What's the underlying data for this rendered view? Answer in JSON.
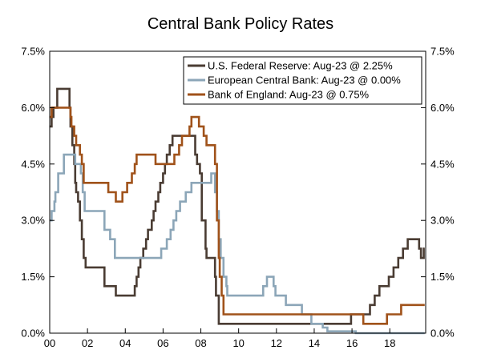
{
  "chart_data": {
    "type": "line",
    "title": "Central Bank Policy Rates",
    "xlabel": "",
    "ylabel": "",
    "xlim": [
      2000,
      2019.9
    ],
    "ylim": [
      0,
      7.5
    ],
    "x_ticks": [
      {
        "value": 2000,
        "label": "00"
      },
      {
        "value": 2002,
        "label": "02"
      },
      {
        "value": 2004,
        "label": "04"
      },
      {
        "value": 2006,
        "label": "06"
      },
      {
        "value": 2008,
        "label": "08"
      },
      {
        "value": 2010,
        "label": "10"
      },
      {
        "value": 2012,
        "label": "12"
      },
      {
        "value": 2014,
        "label": "14"
      },
      {
        "value": 2016,
        "label": "16"
      },
      {
        "value": 2018,
        "label": "18"
      }
    ],
    "y_ticks": [
      {
        "value": 0,
        "label": "0.0%"
      },
      {
        "value": 1.5,
        "label": "1.5%"
      },
      {
        "value": 3,
        "label": "3.0%"
      },
      {
        "value": 4.5,
        "label": "4.5%"
      },
      {
        "value": 6,
        "label": "6.0%"
      },
      {
        "value": 7.5,
        "label": "7.5%"
      }
    ],
    "right_axis": true,
    "grid": false,
    "legend_position": "top-right",
    "series": [
      {
        "name": "U.S. Federal Reserve: Aug-23 @ 2.25%",
        "color": "#4a3c33",
        "points": [
          [
            2000.0,
            5.5
          ],
          [
            2000.1,
            5.75
          ],
          [
            2000.2,
            6.0
          ],
          [
            2000.4,
            6.5
          ],
          [
            2001.0,
            6.5
          ],
          [
            2001.05,
            6.0
          ],
          [
            2001.1,
            5.5
          ],
          [
            2001.2,
            5.0
          ],
          [
            2001.3,
            4.5
          ],
          [
            2001.35,
            4.0
          ],
          [
            2001.4,
            3.75
          ],
          [
            2001.5,
            3.5
          ],
          [
            2001.6,
            3.0
          ],
          [
            2001.7,
            2.5
          ],
          [
            2001.8,
            2.0
          ],
          [
            2001.9,
            1.75
          ],
          [
            2002.9,
            1.25
          ],
          [
            2003.5,
            1.0
          ],
          [
            2004.5,
            1.25
          ],
          [
            2004.6,
            1.5
          ],
          [
            2004.7,
            1.75
          ],
          [
            2004.8,
            2.0
          ],
          [
            2004.95,
            2.25
          ],
          [
            2005.1,
            2.5
          ],
          [
            2005.2,
            2.75
          ],
          [
            2005.4,
            3.0
          ],
          [
            2005.5,
            3.25
          ],
          [
            2005.6,
            3.5
          ],
          [
            2005.75,
            3.75
          ],
          [
            2005.85,
            4.0
          ],
          [
            2006.0,
            4.25
          ],
          [
            2006.1,
            4.5
          ],
          [
            2006.2,
            4.75
          ],
          [
            2006.35,
            5.0
          ],
          [
            2006.5,
            5.25
          ],
          [
            2007.7,
            4.75
          ],
          [
            2007.8,
            4.5
          ],
          [
            2007.95,
            4.25
          ],
          [
            2008.05,
            3.0
          ],
          [
            2008.25,
            2.25
          ],
          [
            2008.3,
            2.0
          ],
          [
            2008.75,
            1.5
          ],
          [
            2008.8,
            1.0
          ],
          [
            2008.95,
            0.25
          ],
          [
            2015.95,
            0.5
          ],
          [
            2016.95,
            0.75
          ],
          [
            2017.2,
            1.0
          ],
          [
            2017.45,
            1.25
          ],
          [
            2017.95,
            1.5
          ],
          [
            2018.2,
            1.75
          ],
          [
            2018.45,
            2.0
          ],
          [
            2018.7,
            2.25
          ],
          [
            2018.95,
            2.5
          ],
          [
            2019.55,
            2.25
          ],
          [
            2019.65,
            2.0
          ],
          [
            2019.8,
            2.25
          ]
        ]
      },
      {
        "name": "European Central Bank: Aug-23 @ 0.00%",
        "color": "#8ca6b8",
        "points": [
          [
            2000.0,
            3.0
          ],
          [
            2000.1,
            3.25
          ],
          [
            2000.25,
            3.5
          ],
          [
            2000.3,
            3.75
          ],
          [
            2000.45,
            4.25
          ],
          [
            2000.75,
            4.75
          ],
          [
            2001.35,
            4.5
          ],
          [
            2001.65,
            4.25
          ],
          [
            2001.75,
            3.75
          ],
          [
            2001.85,
            3.25
          ],
          [
            2002.9,
            2.75
          ],
          [
            2003.2,
            2.5
          ],
          [
            2003.45,
            2.0
          ],
          [
            2005.9,
            2.25
          ],
          [
            2006.2,
            2.5
          ],
          [
            2006.4,
            2.75
          ],
          [
            2006.55,
            3.0
          ],
          [
            2006.7,
            3.25
          ],
          [
            2006.9,
            3.5
          ],
          [
            2007.2,
            3.75
          ],
          [
            2007.5,
            4.0
          ],
          [
            2008.55,
            4.25
          ],
          [
            2008.75,
            3.75
          ],
          [
            2008.85,
            3.25
          ],
          [
            2008.95,
            2.5
          ],
          [
            2009.05,
            2.0
          ],
          [
            2009.2,
            1.5
          ],
          [
            2009.35,
            1.25
          ],
          [
            2009.4,
            1.0
          ],
          [
            2011.3,
            1.25
          ],
          [
            2011.5,
            1.5
          ],
          [
            2011.85,
            1.25
          ],
          [
            2011.95,
            1.0
          ],
          [
            2012.5,
            0.75
          ],
          [
            2013.35,
            0.5
          ],
          [
            2013.85,
            0.25
          ],
          [
            2014.45,
            0.15
          ],
          [
            2014.7,
            0.05
          ],
          [
            2016.2,
            0.0
          ]
        ]
      },
      {
        "name": "Bank of England: Aug-23 @ 0.75%",
        "color": "#a0521a",
        "points": [
          [
            2000.0,
            5.75
          ],
          [
            2000.1,
            6.0
          ],
          [
            2001.1,
            5.75
          ],
          [
            2001.15,
            5.5
          ],
          [
            2001.3,
            5.25
          ],
          [
            2001.4,
            5.0
          ],
          [
            2001.6,
            4.75
          ],
          [
            2001.7,
            4.5
          ],
          [
            2001.8,
            4.0
          ],
          [
            2003.1,
            3.75
          ],
          [
            2003.5,
            3.5
          ],
          [
            2003.85,
            3.75
          ],
          [
            2004.1,
            4.0
          ],
          [
            2004.35,
            4.25
          ],
          [
            2004.5,
            4.5
          ],
          [
            2004.6,
            4.75
          ],
          [
            2005.6,
            4.5
          ],
          [
            2006.6,
            4.75
          ],
          [
            2006.85,
            5.0
          ],
          [
            2007.0,
            5.25
          ],
          [
            2007.4,
            5.5
          ],
          [
            2007.5,
            5.75
          ],
          [
            2007.9,
            5.5
          ],
          [
            2008.15,
            5.25
          ],
          [
            2008.3,
            5.0
          ],
          [
            2008.75,
            4.5
          ],
          [
            2008.85,
            3.0
          ],
          [
            2008.95,
            2.0
          ],
          [
            2009.0,
            1.5
          ],
          [
            2009.1,
            1.0
          ],
          [
            2009.2,
            0.5
          ],
          [
            2016.6,
            0.25
          ],
          [
            2017.85,
            0.5
          ],
          [
            2018.6,
            0.75
          ]
        ]
      }
    ]
  }
}
